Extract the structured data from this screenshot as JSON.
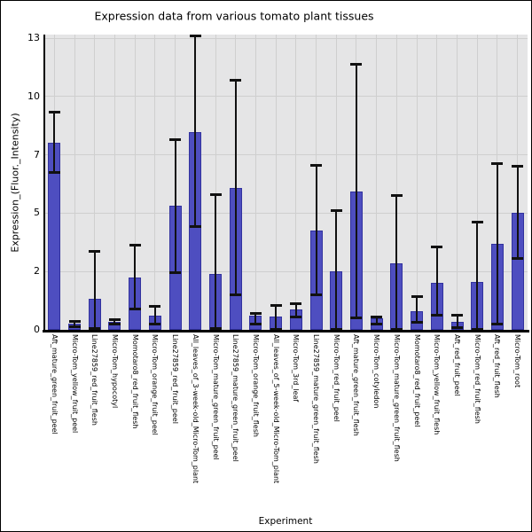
{
  "figure": {
    "title": "Expression data from various tomato plant tissues"
  },
  "chart_data": {
    "type": "bar",
    "title": "Expression data from various tomato plant tissues",
    "xlabel": "Experiment",
    "ylabel": "Expression_(Fluor._Intensity)",
    "legend": "none",
    "grid": true,
    "yticks": [
      0,
      2,
      5,
      7,
      10,
      13
    ],
    "yticks_equally_spaced": true,
    "ylim": [
      0,
      13.2
    ],
    "categories": [
      "Aft_mature_green_fruit_peel",
      "Micro-Tom_yellow_fruit_peel",
      "Line27859_red_fruit_flesh",
      "Micro-Tom_hypocotyl",
      "Momotaro8_red_fruit_flesh",
      "Micro-Tom_orange_fruit_peel",
      "Line27859_red_fruit_peel",
      "All_leaves_of_3-week-old_Micro-Tom_plant",
      "Micro-Tom_mature_green_fruit_peel",
      "Line27859_mature_green_fruit_peel",
      "Micro-Tom_orange_fruit_flesh",
      "All_leaves_of_5-week-old_Micro-Tom_plant",
      "Micro-Tom_3rd_leaf",
      "Line27859_mature_green_fruit_flesh",
      "Micro-Tom_red_fruit_peel",
      "Aft_mature_green_fruit_flesh",
      "Micro-Tom_cotyledon",
      "Micro-Tom_mature_green_fruit_flesh",
      "Momotaro8_red_fruit_peel",
      "Micro-Tom_yellow_fruit_flesh",
      "Aft_red_fruit_peel",
      "Micro-Tom_red_fruit_flesh",
      "Aft_red_fruit_flesh",
      "Micro-Tom_root"
    ],
    "values": [
      7.6,
      0.2,
      1.05,
      0.27,
      1.8,
      0.5,
      5.25,
      8.15,
      1.9,
      5.85,
      0.48,
      0.45,
      0.7,
      4.1,
      2.0,
      5.75,
      0.38,
      2.4,
      0.65,
      1.6,
      0.27,
      1.65,
      3.4,
      5.0
    ],
    "error_high": [
      9.2,
      0.3,
      3.05,
      0.35,
      3.35,
      0.8,
      7.8,
      13.1,
      5.65,
      10.85,
      0.55,
      0.85,
      0.9,
      6.65,
      5.1,
      11.65,
      0.45,
      5.6,
      1.15,
      3.25,
      0.5,
      4.55,
      6.7,
      6.6
    ],
    "error_low": [
      6.4,
      0.12,
      0.05,
      0.2,
      0.7,
      0.2,
      1.95,
      4.3,
      0.05,
      1.2,
      0.2,
      0.02,
      0.45,
      1.2,
      0.03,
      0.4,
      0.2,
      0.02,
      0.25,
      0.5,
      0.07,
      0.02,
      0.2,
      2.65
    ],
    "colors": {
      "bar_fill": "#4e4ec0",
      "bar_edge": "#32329e",
      "error_bar": "#111111",
      "plot_background": "#e5e5e6",
      "grid_line": "#cfcfcf",
      "figure_background": "#ffffff",
      "text": "#000000"
    }
  }
}
